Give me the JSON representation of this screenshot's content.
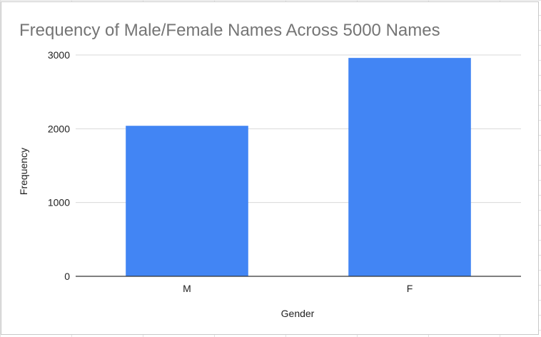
{
  "chart_data": {
    "type": "bar",
    "title": "Frequency of Male/Female Names Across 5000 Names",
    "xlabel": "Gender",
    "ylabel": "Frequency",
    "categories": [
      "M",
      "F"
    ],
    "values": [
      2040,
      2960
    ],
    "ylim": [
      0,
      3000
    ],
    "yticks": [
      0,
      1000,
      2000,
      3000
    ],
    "ytick_labels": [
      "0",
      "1000",
      "2000",
      "3000"
    ],
    "grid": true,
    "bar_color": "#4285f4",
    "title_color": "#757575",
    "gridline_color": "#d9d9d9",
    "baseline_color": "#333333"
  }
}
